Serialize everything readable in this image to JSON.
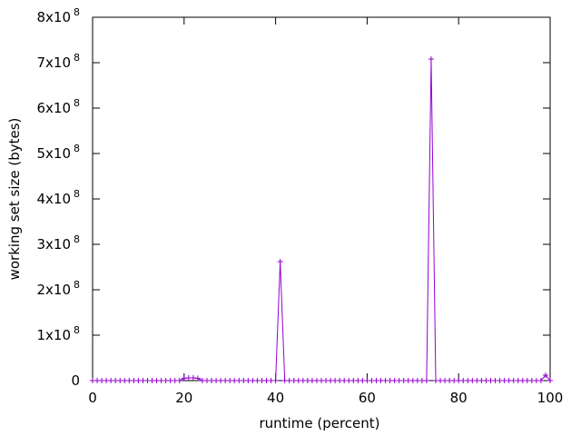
{
  "chart_data": {
    "type": "line",
    "title": "",
    "xlabel": "runtime (percent)",
    "ylabel": "working set size (bytes)",
    "xlim": [
      0,
      100
    ],
    "ylim": [
      0,
      800000000
    ],
    "grid": false,
    "legend": "none",
    "x_ticks": [
      {
        "value": 0,
        "label": "0"
      },
      {
        "value": 20,
        "label": "20"
      },
      {
        "value": 40,
        "label": "40"
      },
      {
        "value": 60,
        "label": "60"
      },
      {
        "value": 80,
        "label": "80"
      },
      {
        "value": 100,
        "label": "100"
      }
    ],
    "y_ticks": [
      {
        "value": 0,
        "mantissa": "0",
        "exponent": ""
      },
      {
        "value": 100000000,
        "mantissa": "1x10",
        "exponent": "8"
      },
      {
        "value": 200000000,
        "mantissa": "2x10",
        "exponent": "8"
      },
      {
        "value": 300000000,
        "mantissa": "3x10",
        "exponent": "8"
      },
      {
        "value": 400000000,
        "mantissa": "4x10",
        "exponent": "8"
      },
      {
        "value": 500000000,
        "mantissa": "5x10",
        "exponent": "8"
      },
      {
        "value": 600000000,
        "mantissa": "6x10",
        "exponent": "8"
      },
      {
        "value": 700000000,
        "mantissa": "7x10",
        "exponent": "8"
      },
      {
        "value": 800000000,
        "mantissa": "8x10",
        "exponent": "8"
      }
    ],
    "series": [
      {
        "color": "#9400d3",
        "marker": "plus",
        "x": [
          0,
          1,
          2,
          3,
          4,
          5,
          6,
          7,
          8,
          9,
          10,
          11,
          12,
          13,
          14,
          15,
          16,
          17,
          18,
          19,
          20,
          21,
          22,
          23,
          24,
          25,
          26,
          27,
          28,
          29,
          30,
          31,
          32,
          33,
          34,
          35,
          36,
          37,
          38,
          39,
          40,
          41,
          42,
          43,
          44,
          45,
          46,
          47,
          48,
          49,
          50,
          51,
          52,
          53,
          54,
          55,
          56,
          57,
          58,
          59,
          60,
          61,
          62,
          63,
          64,
          65,
          66,
          67,
          68,
          69,
          70,
          71,
          72,
          73,
          74,
          75,
          76,
          77,
          78,
          79,
          80,
          81,
          82,
          83,
          84,
          85,
          86,
          87,
          88,
          89,
          90,
          91,
          92,
          93,
          94,
          95,
          96,
          97,
          98,
          99,
          100
        ],
        "y": [
          0,
          0,
          0,
          0,
          0,
          0,
          0,
          0,
          0,
          0,
          0,
          0,
          0,
          0,
          0,
          0,
          0,
          0,
          0,
          0,
          5000000,
          6000000,
          6000000,
          5000000,
          0,
          0,
          0,
          0,
          0,
          0,
          0,
          0,
          0,
          0,
          0,
          0,
          0,
          0,
          0,
          0,
          0,
          262000000,
          0,
          0,
          0,
          0,
          0,
          0,
          0,
          0,
          0,
          0,
          0,
          0,
          0,
          0,
          0,
          0,
          0,
          0,
          0,
          0,
          0,
          0,
          0,
          0,
          0,
          0,
          0,
          0,
          0,
          0,
          0,
          0,
          708000000,
          0,
          0,
          0,
          0,
          0,
          0,
          0,
          0,
          0,
          0,
          0,
          0,
          0,
          0,
          0,
          0,
          0,
          0,
          0,
          0,
          0,
          0,
          0,
          0,
          12000000,
          0
        ]
      }
    ]
  }
}
